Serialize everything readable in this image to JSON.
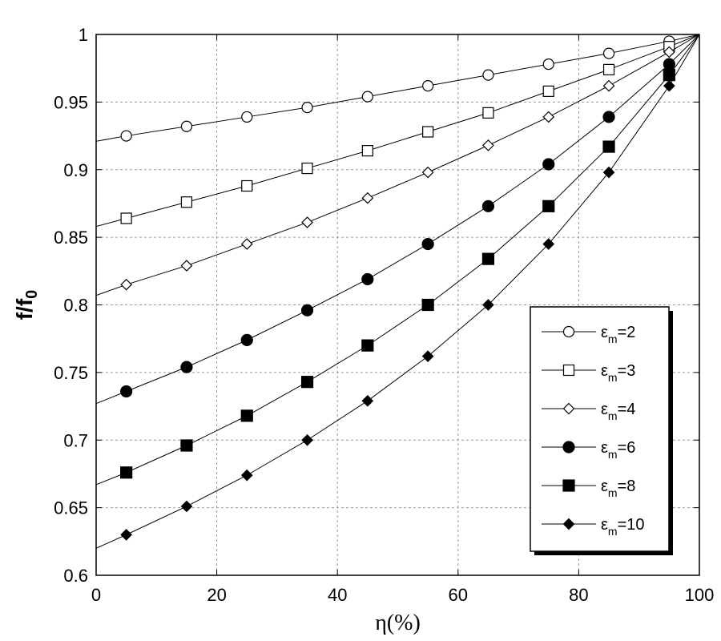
{
  "chart_data": {
    "type": "line",
    "title": "",
    "xlabel": "η(%)",
    "ylabel": "f/f",
    "ylabel_sub": "0",
    "xlim": [
      0,
      100
    ],
    "ylim": [
      0.6,
      1.0
    ],
    "xticks": [
      0,
      20,
      40,
      60,
      80,
      100
    ],
    "yticks": [
      0.6,
      0.65,
      0.7,
      0.75,
      0.8,
      0.85,
      0.9,
      0.95,
      1.0
    ],
    "ytick_labels": [
      "0.6",
      "0.65",
      "0.7",
      "0.75",
      "0.8",
      "0.85",
      "0.9",
      "0.95",
      "1"
    ],
    "xtick_labels": [
      "0",
      "20",
      "40",
      "60",
      "80",
      "100"
    ],
    "grid": true,
    "legend_position": "bottom-right",
    "line_color": "#000000",
    "marker_x": [
      5,
      15,
      25,
      35,
      45,
      55,
      65,
      75,
      85,
      95
    ],
    "series": [
      {
        "name": "εm=2",
        "symbol": "ε",
        "sub": "m",
        "value_text": "=2",
        "marker": "circle-open",
        "y0": 0.921,
        "values": [
          0.925,
          0.932,
          0.939,
          0.946,
          0.954,
          0.962,
          0.97,
          0.978,
          0.986,
          0.995
        ]
      },
      {
        "name": "εm=3",
        "symbol": "ε",
        "sub": "m",
        "value_text": "=3",
        "marker": "square-open",
        "y0": 0.858,
        "values": [
          0.864,
          0.876,
          0.888,
          0.901,
          0.914,
          0.928,
          0.942,
          0.958,
          0.974,
          0.991
        ]
      },
      {
        "name": "εm=4",
        "symbol": "ε",
        "sub": "m",
        "value_text": "=4",
        "marker": "diamond-open",
        "y0": 0.807,
        "values": [
          0.815,
          0.829,
          0.845,
          0.861,
          0.879,
          0.898,
          0.918,
          0.939,
          0.962,
          0.987
        ]
      },
      {
        "name": "εm=6",
        "symbol": "ε",
        "sub": "m",
        "value_text": "=6",
        "marker": "circle-filled",
        "y0": 0.727,
        "values": [
          0.736,
          0.754,
          0.774,
          0.796,
          0.819,
          0.845,
          0.873,
          0.904,
          0.939,
          0.978
        ]
      },
      {
        "name": "εm=8",
        "symbol": "ε",
        "sub": "m",
        "value_text": "=8",
        "marker": "square-filled",
        "y0": 0.667,
        "values": [
          0.676,
          0.696,
          0.718,
          0.743,
          0.77,
          0.8,
          0.834,
          0.873,
          0.917,
          0.97
        ]
      },
      {
        "name": "εm=10",
        "symbol": "ε",
        "sub": "m",
        "value_text": "=10",
        "marker": "diamond-filled",
        "y0": 0.62,
        "values": [
          0.63,
          0.651,
          0.674,
          0.7,
          0.729,
          0.762,
          0.8,
          0.845,
          0.898,
          0.962
        ]
      }
    ],
    "endpoint": [
      100,
      1.0
    ]
  }
}
